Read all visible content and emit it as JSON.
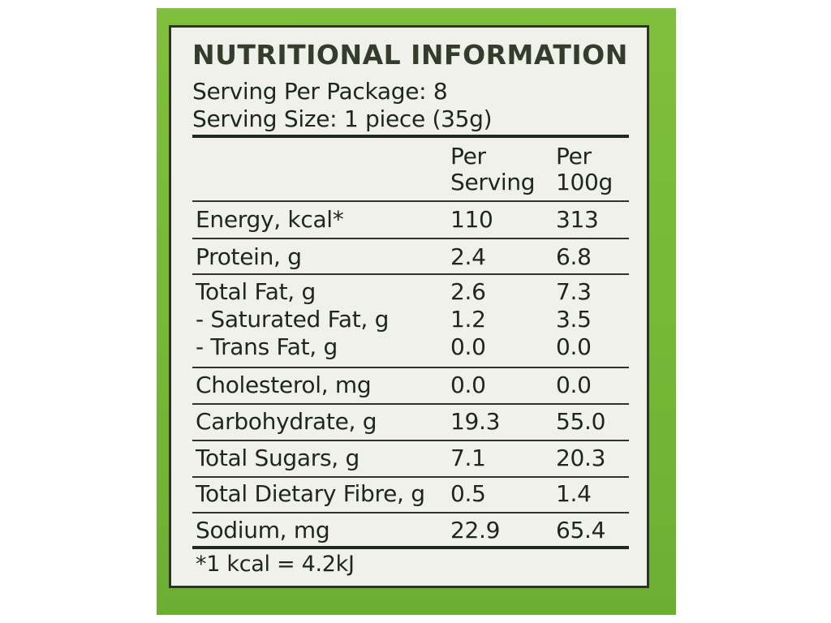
{
  "panel": {
    "title": "NUTRITIONAL INFORMATION",
    "servings_per_package": "Serving Per Package: 8",
    "serving_size": "Serving Size: 1 piece (35g)"
  },
  "columns": {
    "per_serving_line1": "Per",
    "per_serving_line2": "Serving",
    "per_100g_line1": "Per",
    "per_100g_line2": "100g"
  },
  "rows": [
    {
      "name": "Energy, kcal*",
      "per_serving": "110",
      "per_100g": "313"
    },
    {
      "name": "Protein, g",
      "per_serving": "2.4",
      "per_100g": "6.8"
    },
    {
      "name": "Total Fat, g",
      "per_serving": "2.6",
      "per_100g": "7.3"
    },
    {
      "name": "- Saturated Fat, g",
      "per_serving": "1.2",
      "per_100g": "3.5"
    },
    {
      "name": "- Trans Fat, g",
      "per_serving": "0.0",
      "per_100g": "0.0"
    },
    {
      "name": "Cholesterol, mg",
      "per_serving": "0.0",
      "per_100g": "0.0"
    },
    {
      "name": "Carbohydrate, g",
      "per_serving": "19.3",
      "per_100g": "55.0"
    },
    {
      "name": "Total Sugars, g",
      "per_serving": "7.1",
      "per_100g": "20.3"
    },
    {
      "name": "Total Dietary Fibre, g",
      "per_serving": "0.5",
      "per_100g": "1.4"
    },
    {
      "name": "Sodium, mg",
      "per_serving": "22.9",
      "per_100g": "65.4"
    }
  ],
  "footnote": "*1 kcal = 4.2kJ",
  "colors": {
    "package_green": "#78b938",
    "label_background": "#eff1ea",
    "ink": "#1f271b"
  }
}
